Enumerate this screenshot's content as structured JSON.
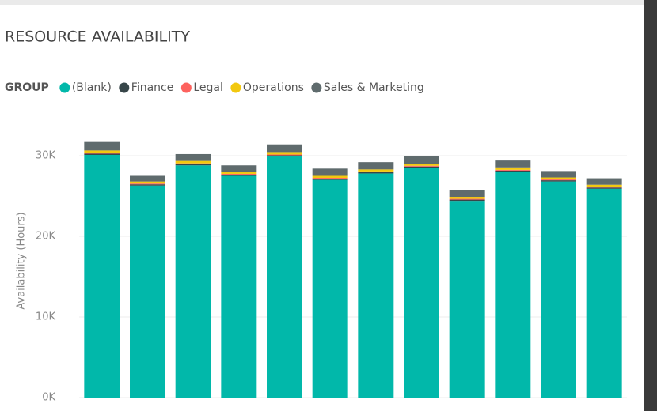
{
  "chart_data": {
    "type": "stacked-bar",
    "title": "RESOURCE AVAILABILITY",
    "legend_title": "GROUP",
    "y_label": "Availability (Hours)",
    "categories": [
      null,
      null,
      null,
      null,
      null,
      null,
      null,
      null,
      null,
      null,
      null,
      null
    ],
    "series": [
      {
        "name": "(Blank)",
        "color": "#01b8aa",
        "values": [
          30100,
          26300,
          28800,
          27500,
          29900,
          27000,
          27800,
          28500,
          24400,
          28000,
          26800,
          25900
        ]
      },
      {
        "name": "Finance",
        "color": "#374649",
        "values": [
          150,
          150,
          150,
          150,
          150,
          150,
          150,
          150,
          150,
          150,
          150,
          150
        ]
      },
      {
        "name": "Legal",
        "color": "#fd625e",
        "values": [
          100,
          100,
          100,
          100,
          100,
          100,
          100,
          100,
          100,
          100,
          100,
          100
        ]
      },
      {
        "name": "Operations",
        "color": "#f2c80f",
        "values": [
          300,
          250,
          300,
          250,
          300,
          250,
          250,
          250,
          250,
          300,
          250,
          250
        ]
      },
      {
        "name": "Sales & Marketing",
        "color": "#5f6b6d",
        "values": [
          1050,
          700,
          850,
          800,
          950,
          900,
          900,
          1000,
          800,
          850,
          800,
          800
        ]
      }
    ],
    "ylim": [
      0,
      33000
    ],
    "yticks": [
      {
        "value": 0,
        "label": "0K"
      },
      {
        "value": 10000,
        "label": "10K"
      },
      {
        "value": 20000,
        "label": "20K"
      },
      {
        "value": 30000,
        "label": "30K"
      }
    ],
    "grid": true
  }
}
